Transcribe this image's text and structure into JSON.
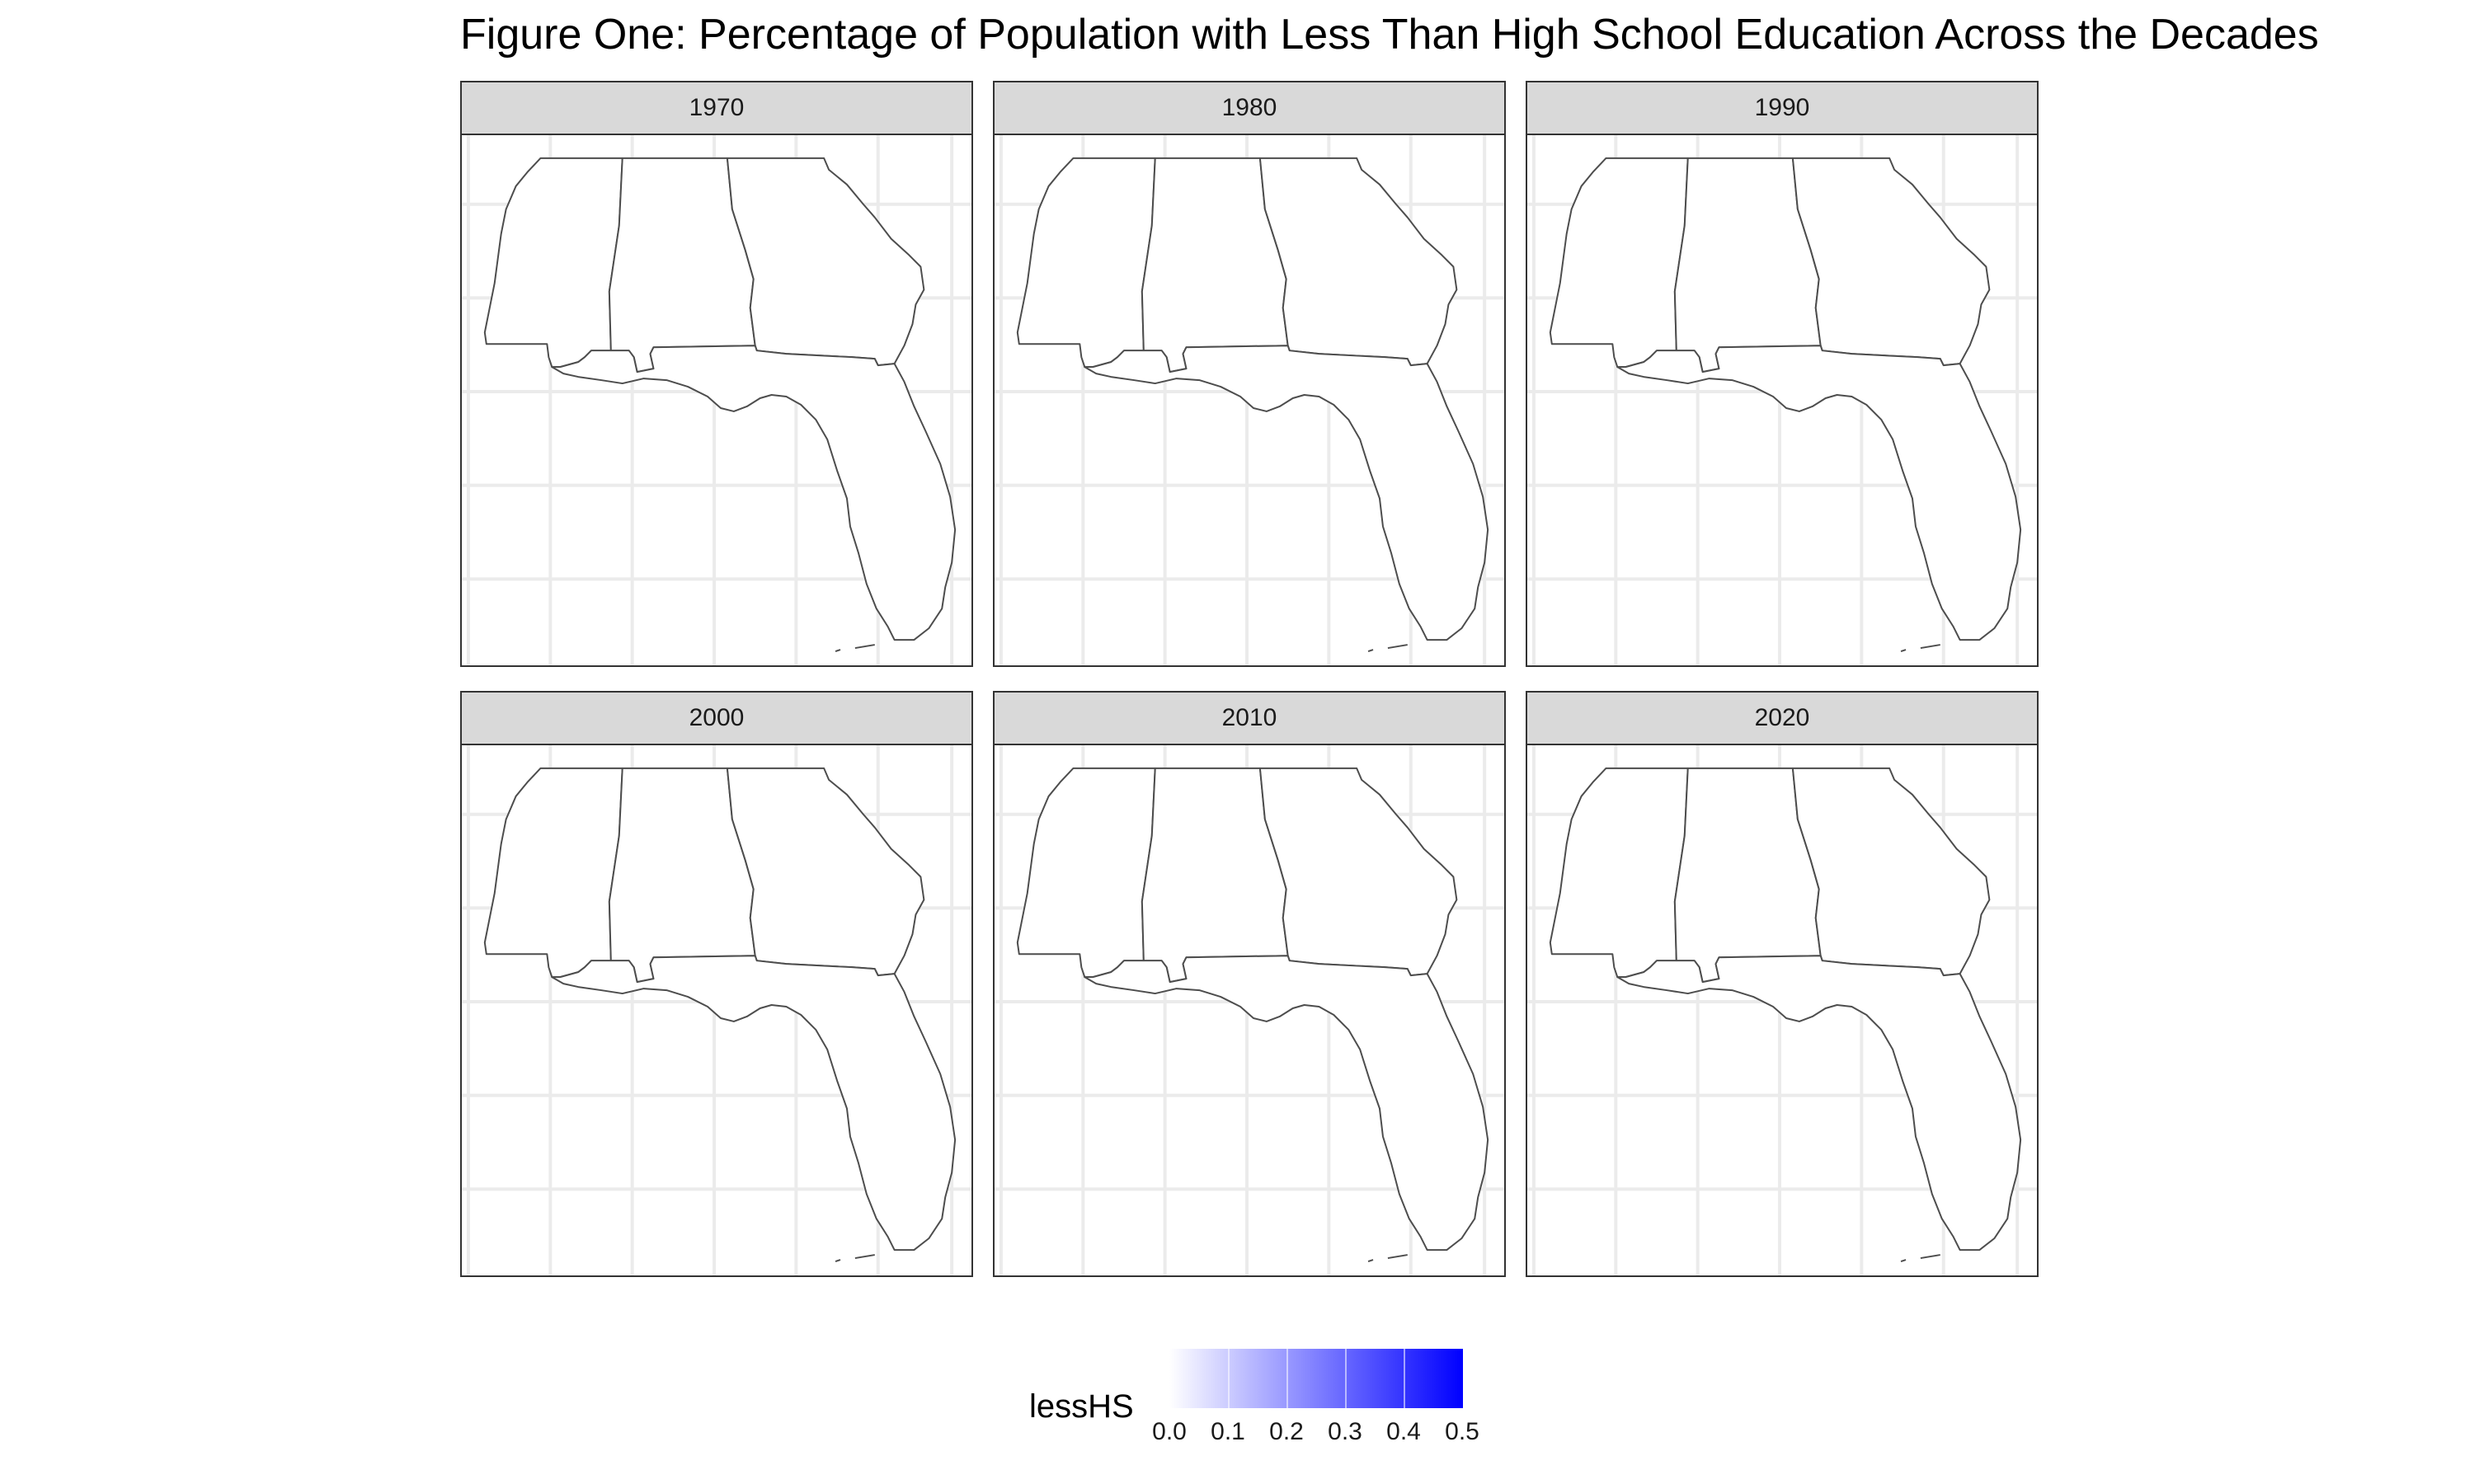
{
  "title": "Figure One: Percentage of Population with Less Than High School Education Across the Decades",
  "panels": [
    {
      "label": "1970"
    },
    {
      "label": "1980"
    },
    {
      "label": "1990"
    },
    {
      "label": "2000"
    },
    {
      "label": "2010"
    },
    {
      "label": "2020"
    }
  ],
  "legend": {
    "title": "lessHS",
    "min_color": "#ffffff",
    "max_color": "#0000ff",
    "ticks": [
      "0.0",
      "0.1",
      "0.2",
      "0.3",
      "0.4",
      "0.5"
    ],
    "range": [
      0,
      0.5
    ]
  },
  "colors": {
    "strip_background": "#d9d9d9",
    "border": "#333333",
    "state_outline": "#4d4d4d",
    "gridline": "#ebebeb"
  }
}
